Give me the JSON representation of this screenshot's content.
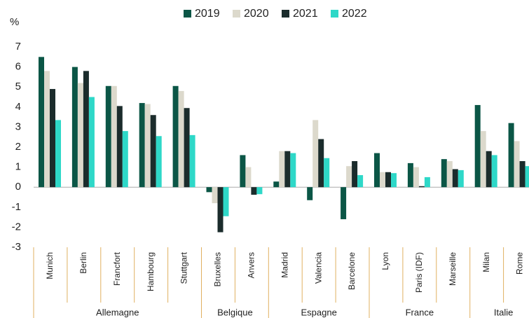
{
  "chart_data": {
    "type": "bar",
    "y_unit": "%",
    "groups": [
      {
        "name": "Allemagne",
        "categories": [
          "Munich",
          "Berlin",
          "Francfort",
          "Hambourg",
          "Stuttgart"
        ]
      },
      {
        "name": "Belgique",
        "categories": [
          "Bruxelles",
          "Anvers"
        ]
      },
      {
        "name": "Espagne",
        "categories": [
          "Madrid",
          "Valencia",
          "Barcelone"
        ]
      },
      {
        "name": "France",
        "categories": [
          "Lyon",
          "Paris (IDF)",
          "Marseille"
        ]
      },
      {
        "name": "Italie",
        "categories": [
          "Milan",
          "Rome"
        ]
      }
    ],
    "series": [
      {
        "name": "2019",
        "color": "#0b5646",
        "values": [
          6.5,
          6.0,
          5.05,
          4.2,
          5.05,
          -0.25,
          1.6,
          0.28,
          -0.65,
          -1.6,
          1.7,
          1.2,
          1.4,
          4.1,
          3.2
        ]
      },
      {
        "name": "2020",
        "color": "#dcd9cc",
        "values": [
          5.8,
          5.2,
          5.05,
          4.15,
          4.8,
          -0.8,
          1.0,
          1.8,
          3.35,
          1.05,
          0.75,
          1.0,
          1.3,
          2.8,
          2.3
        ]
      },
      {
        "name": "2021",
        "color": "#1b2c2c",
        "values": [
          4.9,
          5.8,
          4.05,
          3.6,
          3.95,
          -2.25,
          -0.38,
          1.8,
          2.4,
          1.3,
          0.75,
          0.05,
          0.9,
          1.8,
          1.3
        ]
      },
      {
        "name": "2022",
        "color": "#2ed8c8",
        "values": [
          3.35,
          4.5,
          2.8,
          2.55,
          2.6,
          -1.45,
          -0.35,
          1.7,
          1.45,
          0.6,
          0.7,
          0.5,
          0.85,
          1.6,
          1.05
        ]
      }
    ],
    "ylim": [
      -3,
      7
    ],
    "yticks": [
      -3,
      -2,
      -1,
      0,
      1,
      2,
      3,
      4,
      5,
      6,
      7
    ],
    "legend": "top"
  }
}
